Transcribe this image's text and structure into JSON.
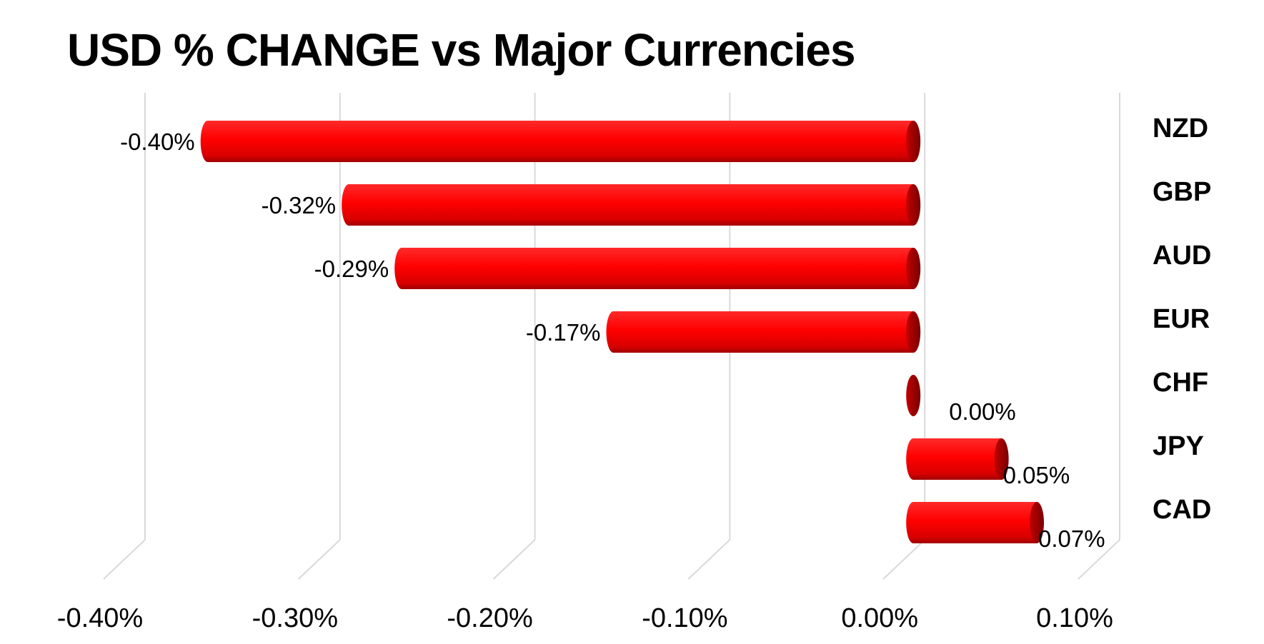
{
  "chart_data": {
    "type": "bar",
    "orientation": "horizontal",
    "title": "USD % CHANGE vs Major Currencies",
    "categories": [
      "NZD",
      "GBP",
      "AUD",
      "EUR",
      "CHF",
      "JPY",
      "CAD"
    ],
    "values": [
      -0.4,
      -0.32,
      -0.29,
      -0.17,
      0.0,
      0.05,
      0.07
    ],
    "data_labels": [
      "-0.40%",
      "-0.32%",
      "-0.29%",
      "-0.17%",
      "0.00%",
      "0.05%",
      "0.07%"
    ],
    "x_ticks": [
      "-0.40%",
      "-0.30%",
      "-0.20%",
      "-0.10%",
      "0.00%",
      "0.10%"
    ],
    "x_tick_values": [
      -0.4,
      -0.3,
      -0.2,
      -0.1,
      0.0,
      0.1
    ],
    "xlim": [
      -0.4,
      0.1
    ],
    "category_labels_position": "right",
    "grid": true,
    "bar_color": "#ff0000",
    "bar_dark_color": "#b00000",
    "grid_color": "#d9d9d9"
  }
}
